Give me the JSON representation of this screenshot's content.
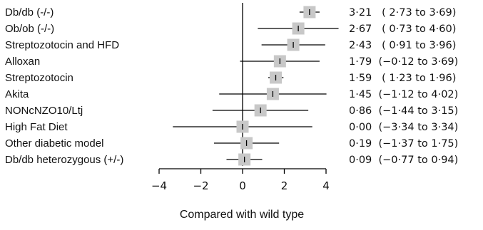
{
  "chart_data": {
    "type": "forest",
    "xlabel": "Compared with wild type",
    "xlim": [
      -4,
      4
    ],
    "xticks": [
      -4,
      -2,
      0,
      2,
      4
    ],
    "xtick_labels": [
      "−4",
      "−2",
      "0",
      "2",
      "4"
    ],
    "reference_line": 0,
    "marker_color": "#c8c8c8",
    "line_color": "#000000",
    "rows": [
      {
        "label": "Db/db (-/-)",
        "estimate": 3.21,
        "lower": 2.73,
        "upper": 3.69,
        "text": "3·21   ( 2·73 to 3·69)"
      },
      {
        "label": "Ob/ob (-/-)",
        "estimate": 2.67,
        "lower": 0.73,
        "upper": 4.6,
        "text": "2·67   ( 0·73 to 4·60)"
      },
      {
        "label": "Streptozotocin and HFD",
        "estimate": 2.43,
        "lower": 0.91,
        "upper": 3.96,
        "text": "2·43   ( 0·91 to 3·96)"
      },
      {
        "label": "Alloxan",
        "estimate": 1.79,
        "lower": -0.12,
        "upper": 3.69,
        "text": "1·79  (−0·12 to 3·69)"
      },
      {
        "label": "Streptozotocin",
        "estimate": 1.59,
        "lower": 1.23,
        "upper": 1.96,
        "text": "1·59   ( 1·23 to 1·96)"
      },
      {
        "label": "Akita",
        "estimate": 1.45,
        "lower": -1.12,
        "upper": 4.02,
        "text": "1·45  (−1·12 to 4·02)"
      },
      {
        "label": "NONcNZO10/Ltj",
        "estimate": 0.86,
        "lower": -1.44,
        "upper": 3.15,
        "text": "0·86  (−1·44 to 3·15)"
      },
      {
        "label": "High Fat Diet",
        "estimate": 0.0,
        "lower": -3.34,
        "upper": 3.34,
        "text": "0·00  (−3·34 to 3·34)"
      },
      {
        "label": "Other diabetic model",
        "estimate": 0.19,
        "lower": -1.37,
        "upper": 1.75,
        "text": "0·19  (−1·37 to 1·75)"
      },
      {
        "label": "Db/db heterozygous (+/-)",
        "estimate": 0.09,
        "lower": -0.77,
        "upper": 0.94,
        "text": "0·09  (−0·77 to 0·94)"
      }
    ]
  }
}
